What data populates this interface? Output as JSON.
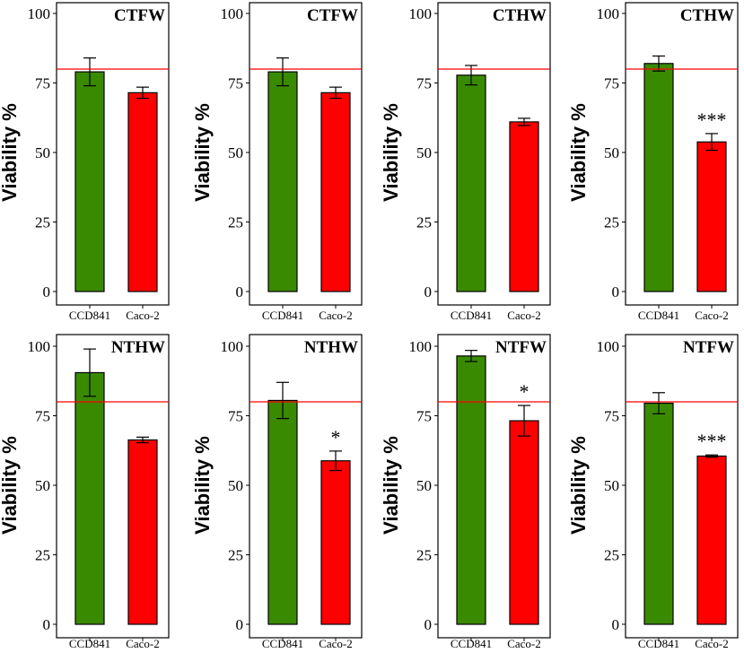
{
  "figure": {
    "colors": {
      "ccd841": "#3a8a00",
      "caco2": "#ff0000",
      "threshold": "#ff0000",
      "axis": "#000000",
      "bar_stroke": "#000000"
    }
  },
  "chart_data": [
    {
      "type": "bar",
      "title": "CTFW",
      "ylabel": "Viability %",
      "categories": [
        "CCD841",
        "Caco-2"
      ],
      "values": [
        79,
        71.5
      ],
      "errors": [
        5,
        2
      ],
      "significance": [
        "",
        ""
      ],
      "ylim": [
        0,
        100
      ],
      "yticks": [
        0,
        25,
        50,
        75,
        100
      ],
      "threshold": 80
    },
    {
      "type": "bar",
      "title": "CTFW",
      "ylabel": "Viability %",
      "categories": [
        "CCD841",
        "Caco-2"
      ],
      "values": [
        79,
        71.5
      ],
      "errors": [
        5,
        2
      ],
      "significance": [
        "",
        ""
      ],
      "ylim": [
        0,
        100
      ],
      "yticks": [
        0,
        25,
        50,
        75,
        100
      ],
      "threshold": 80
    },
    {
      "type": "bar",
      "title": "CTHW",
      "ylabel": "Viability %",
      "categories": [
        "CCD841",
        "Caco-2"
      ],
      "values": [
        77.8,
        61
      ],
      "errors": [
        3.5,
        1.3
      ],
      "significance": [
        "",
        ""
      ],
      "ylim": [
        0,
        100
      ],
      "yticks": [
        0,
        25,
        50,
        75,
        100
      ],
      "threshold": 80
    },
    {
      "type": "bar",
      "title": "CTHW",
      "ylabel": "Viability %",
      "categories": [
        "CCD841",
        "Caco-2"
      ],
      "values": [
        82,
        53.8
      ],
      "errors": [
        2.7,
        3
      ],
      "significance": [
        "",
        "***"
      ],
      "ylim": [
        0,
        100
      ],
      "yticks": [
        0,
        25,
        50,
        75,
        100
      ],
      "threshold": 80
    },
    {
      "type": "bar",
      "title": "NTHW",
      "ylabel": "Viability %",
      "categories": [
        "CCD841",
        "Caco-2"
      ],
      "values": [
        90.5,
        66.3
      ],
      "errors": [
        8.5,
        1
      ],
      "significance": [
        "",
        ""
      ],
      "ylim": [
        0,
        100
      ],
      "yticks": [
        0,
        25,
        50,
        75,
        100
      ],
      "threshold": 80
    },
    {
      "type": "bar",
      "title": "NTHW",
      "ylabel": "Viability %",
      "categories": [
        "CCD841",
        "Caco-2"
      ],
      "values": [
        80.5,
        58.8
      ],
      "errors": [
        6.5,
        3.5
      ],
      "significance": [
        "",
        "*"
      ],
      "ylim": [
        0,
        100
      ],
      "yticks": [
        0,
        25,
        50,
        75,
        100
      ],
      "threshold": 80
    },
    {
      "type": "bar",
      "title": "NTFW",
      "ylabel": "Viability %",
      "categories": [
        "CCD841",
        "Caco-2"
      ],
      "values": [
        96.5,
        73.2
      ],
      "errors": [
        2,
        5.5
      ],
      "significance": [
        "",
        "*"
      ],
      "ylim": [
        0,
        100
      ],
      "yticks": [
        0,
        25,
        50,
        75,
        100
      ],
      "threshold": 80
    },
    {
      "type": "bar",
      "title": "NTFW",
      "ylabel": "Viability %",
      "categories": [
        "CCD841",
        "Caco-2"
      ],
      "values": [
        79.5,
        60.5
      ],
      "errors": [
        3.8,
        0.4
      ],
      "significance": [
        "",
        "***"
      ],
      "ylim": [
        0,
        100
      ],
      "yticks": [
        0,
        25,
        50,
        75,
        100
      ],
      "threshold": 80
    }
  ]
}
